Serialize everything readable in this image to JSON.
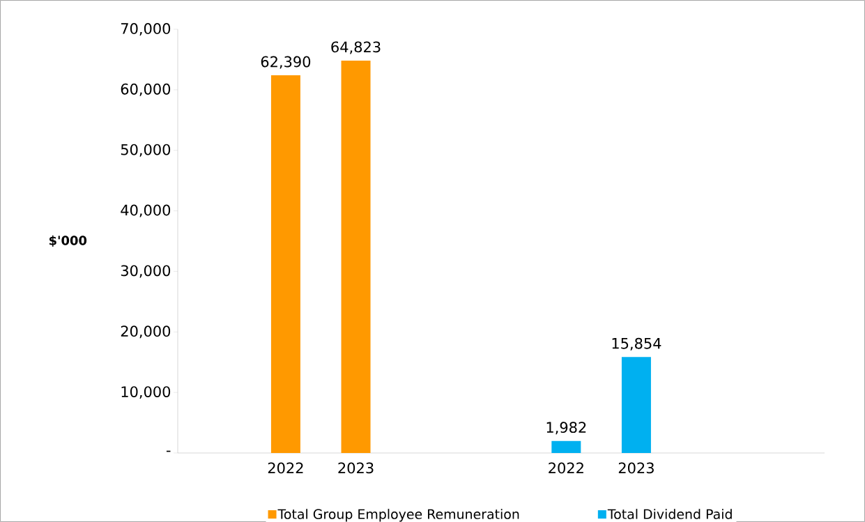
{
  "chart_data": {
    "type": "bar",
    "ylabel": "$'000",
    "categories": [
      "2022",
      "2023",
      null,
      null,
      "2022",
      "2023"
    ],
    "series": [
      {
        "name": "Total Group Employee Remuneration",
        "color": "#ff9900",
        "values": [
          62390,
          64823,
          null,
          null,
          null,
          null
        ],
        "value_labels": [
          "62,390",
          "64,823",
          null,
          null,
          null,
          null
        ]
      },
      {
        "name": "Total Dividend Paid",
        "color": "#00b0f0",
        "values": [
          null,
          null,
          null,
          null,
          1982,
          15854
        ],
        "value_labels": [
          null,
          null,
          null,
          null,
          "1,982",
          "15,854"
        ]
      }
    ],
    "ylim": [
      0,
      70000
    ],
    "yticks": [
      {
        "value": 0,
        "label": "-"
      },
      {
        "value": 10000,
        "label": "10,000"
      },
      {
        "value": 20000,
        "label": "20,000"
      },
      {
        "value": 30000,
        "label": "30,000"
      },
      {
        "value": 40000,
        "label": "40,000"
      },
      {
        "value": 50000,
        "label": "50,000"
      },
      {
        "value": 60000,
        "label": "60,000"
      },
      {
        "value": 70000,
        "label": "70,000"
      }
    ],
    "grid": false,
    "legend": "bottom"
  }
}
